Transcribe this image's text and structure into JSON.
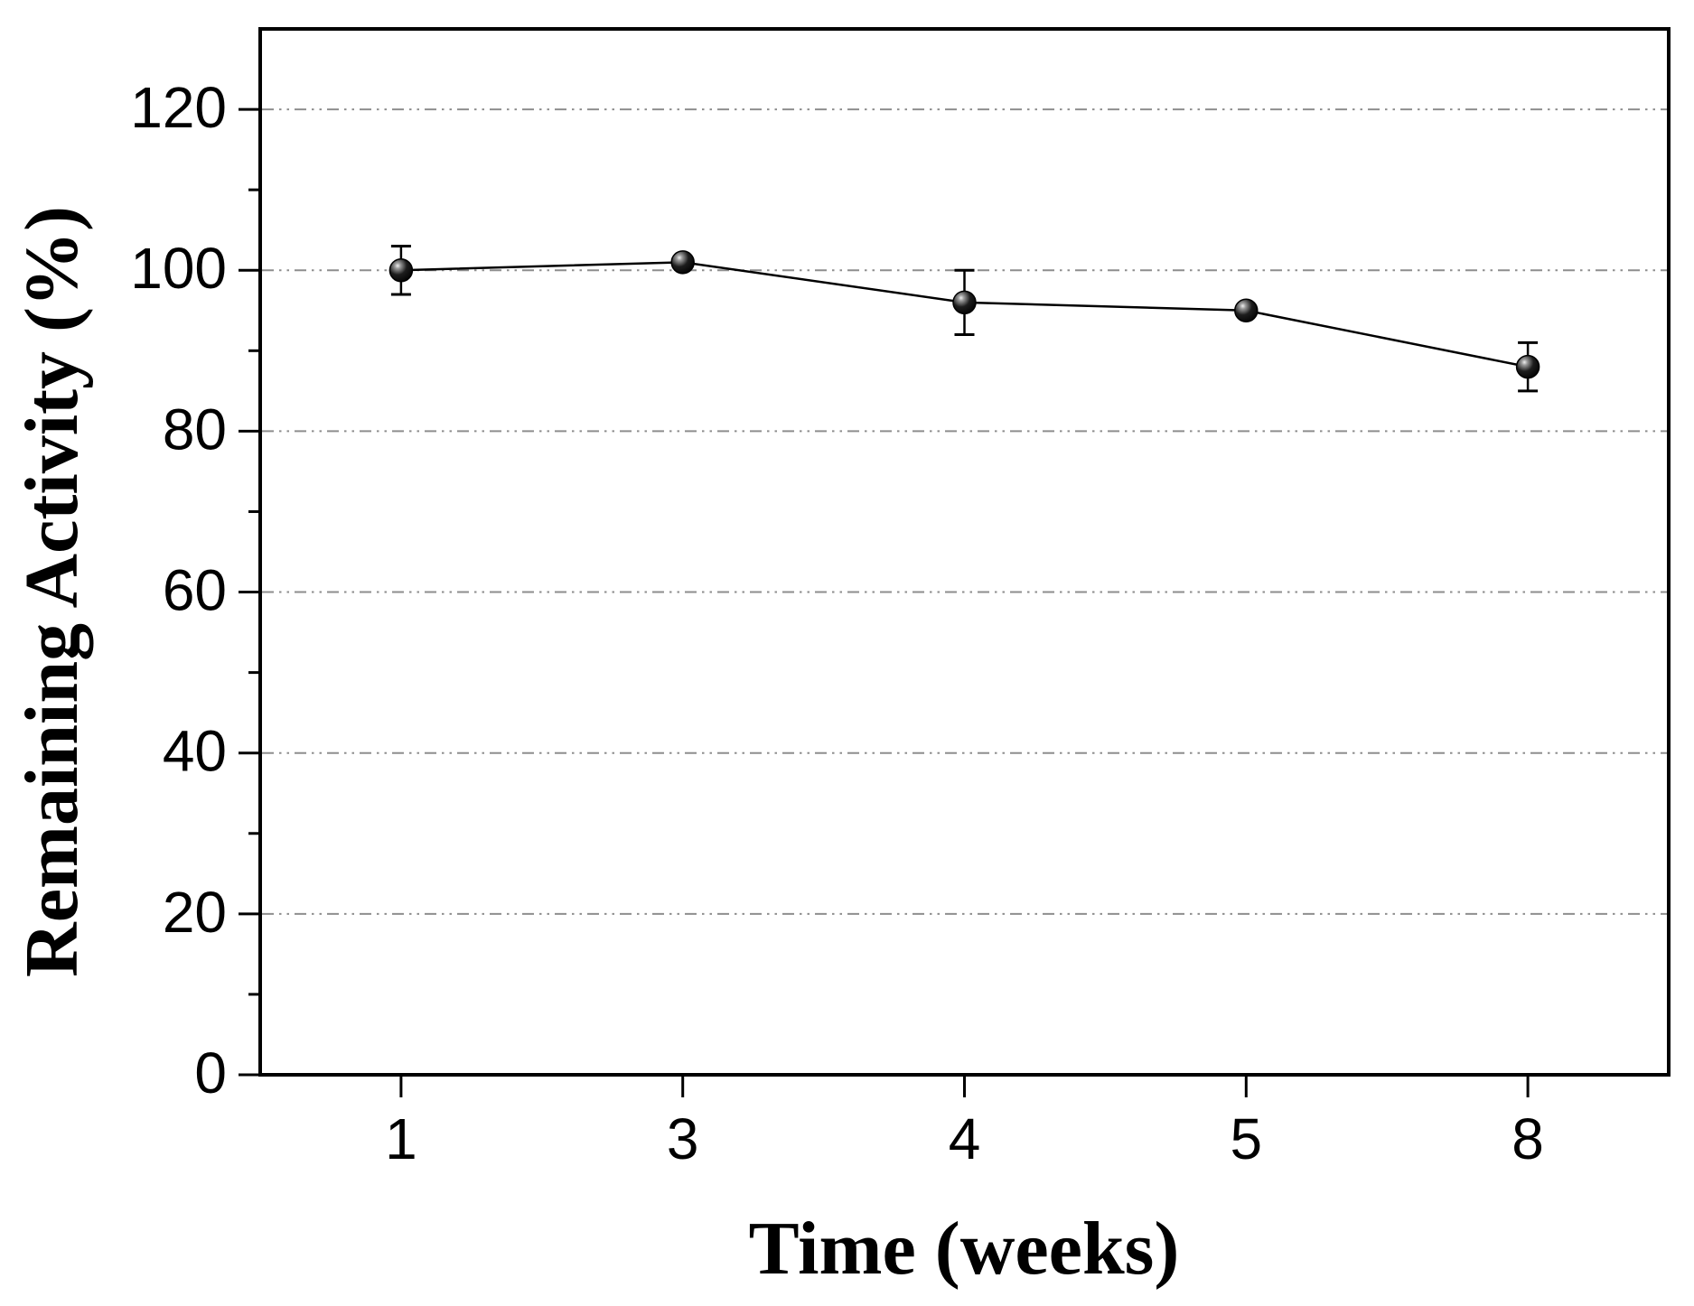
{
  "chart_data": {
    "type": "line",
    "title": "",
    "xlabel": "Time (weeks)",
    "ylabel": "Remaining Activity (%)",
    "categories": [
      "1",
      "3",
      "4",
      "5",
      "8"
    ],
    "series": [
      {
        "name": "remaining-activity",
        "values": [
          100,
          101,
          96,
          95,
          88
        ],
        "errors": [
          3,
          0,
          4,
          0,
          3
        ]
      }
    ],
    "ylim": [
      0,
      130
    ],
    "yticks_major": [
      0,
      20,
      40,
      60,
      80,
      100,
      120
    ],
    "yticks_minor": [
      10,
      30,
      50,
      70,
      90,
      110
    ],
    "ygrid": [
      20,
      40,
      60,
      80,
      100,
      120
    ],
    "grid_style": "horizontal dash-dot-dot",
    "legend": "none",
    "marker": "filled-sphere",
    "colors": {
      "line": "#000000",
      "marker": "#111111",
      "grid": "#8e8e8e",
      "axis": "#000000",
      "background": "#ffffff"
    }
  }
}
